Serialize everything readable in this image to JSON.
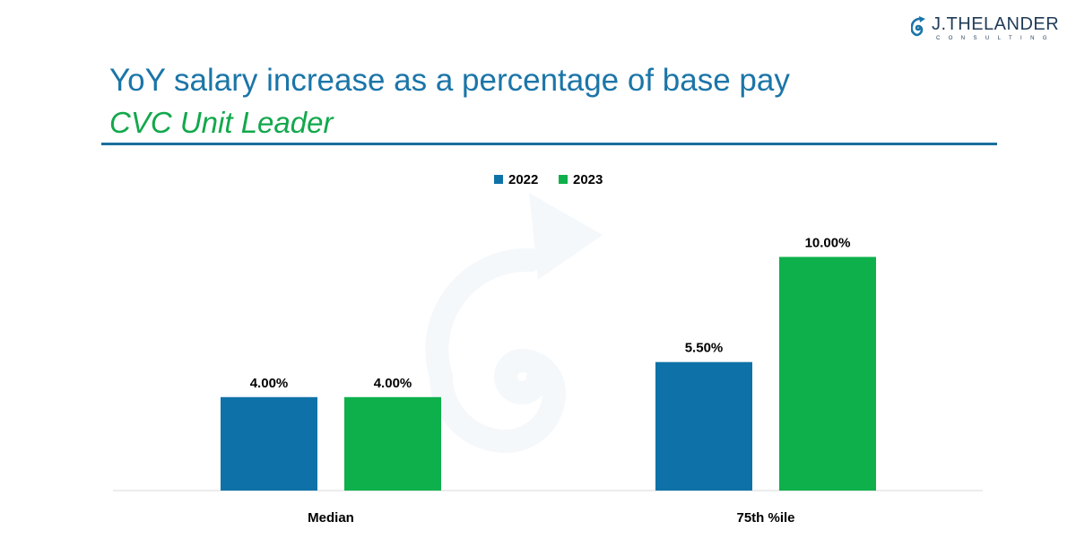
{
  "logo": {
    "name": "J.THELANDER",
    "sub": "CONSULTING",
    "icon": "spiral-logo-icon"
  },
  "header": {
    "title": "YoY salary increase as a percentage of base pay",
    "subtitle": "CVC Unit Leader"
  },
  "colors": {
    "series_2022": "#0e72a8",
    "series_2023": "#0db04b",
    "title": "#1b75a8",
    "subtitle": "#12a84c",
    "rule": "#1b6f9e"
  },
  "chart_data": {
    "type": "bar",
    "categories": [
      "Median",
      "75th %ile"
    ],
    "series": [
      {
        "name": "2022",
        "values": [
          4.0,
          5.5
        ],
        "labels": [
          "4.00%",
          "5.50%"
        ]
      },
      {
        "name": "2023",
        "values": [
          4.0,
          10.0
        ],
        "labels": [
          "4.00%",
          "10.00%"
        ]
      }
    ],
    "ylim": [
      0,
      10.9
    ],
    "legend": "top-center",
    "grid": false,
    "title": "",
    "xlabel": "",
    "ylabel": ""
  }
}
